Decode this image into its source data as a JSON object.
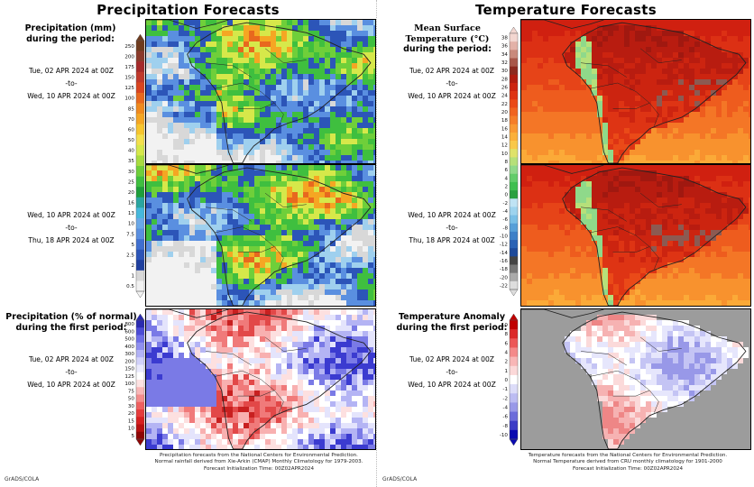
{
  "left": {
    "title": "Precipitation Forecasts",
    "label1_a": "Precipitation (mm)",
    "label1_b": "during the period:",
    "label3_a": "Precipitation (% of normal)",
    "label3_b": "during the first period:",
    "period1": [
      "Tue, 02 APR 2024 at 00Z",
      "-to-",
      "Wed, 10 APR 2024 at 00Z"
    ],
    "period2": [
      "Wed, 10 APR 2024 at 00Z",
      "-to-",
      "Thu, 18 APR 2024 at 00Z"
    ],
    "period3": [
      "Tue, 02 APR 2024 at 00Z",
      "-to-",
      "Wed, 10 APR 2024 at 00Z"
    ],
    "scale_mm": [
      "250",
      "200",
      "175",
      "150",
      "125",
      "100",
      "85",
      "70",
      "60",
      "50",
      "40",
      "35",
      "30",
      "25",
      "20",
      "16",
      "13",
      "10",
      "7.5",
      "5",
      "2.5",
      "2",
      "1",
      "0.5"
    ],
    "scale_pct": [
      "800",
      "600",
      "500",
      "400",
      "300",
      "200",
      "150",
      "125",
      "100",
      "75",
      "50",
      "30",
      "20",
      "15",
      "10",
      "5"
    ],
    "footer": [
      "Precipitation forecasts from the National Centers for Environmental Prediction.",
      "Normal rainfall derived from Xie-Arkin (CMAP) Monthly Climatology for 1979-2003.",
      "Forecast Initialization Time: 00Z02APR2024"
    ],
    "credit": "GrADS/COLA"
  },
  "right": {
    "title": "Temperature Forecasts",
    "label1_a": "Mean Surface Temperature (°C)",
    "label1_b": "during the period:",
    "label3_a": "Temperature Anomaly",
    "label3_b": "during the first period:",
    "period1": [
      "Tue, 02 APR 2024 at 00Z",
      "-to-",
      "Wed, 10 APR 2024 at 00Z"
    ],
    "period2": [
      "Wed, 10 APR 2024 at 00Z",
      "-to-",
      "Thu, 18 APR 2024 at 00Z"
    ],
    "period3": [
      "Tue, 02 APR 2024 at 00Z",
      "-to-",
      "Wed, 10 APR 2024 at 00Z"
    ],
    "scale_temp": [
      "38",
      "36",
      "34",
      "32",
      "30",
      "28",
      "26",
      "24",
      "22",
      "20",
      "18",
      "16",
      "14",
      "12",
      "10",
      "8",
      "6",
      "4",
      "2",
      "0",
      "-2",
      "-4",
      "-6",
      "-8",
      "-10",
      "-12",
      "-14",
      "-16",
      "-18",
      "-20",
      "-22"
    ],
    "scale_anom": [
      "10",
      "8",
      "6",
      "4",
      "2",
      "1",
      "0",
      "-1",
      "-2",
      "-4",
      "-6",
      "-8",
      "-10"
    ],
    "footer": [
      "Temperature forecasts from the National Centers for Environmental Prediction.",
      "Normal Temperature derived from CRU monthly climatology for 1901-2000",
      "Forecast Initialization Time: 00Z02APR2024"
    ],
    "credit": "GrADS/COLA"
  },
  "chart_data": [
    {
      "type": "heatmap",
      "title": "Precipitation (mm) during the period: Tue, 02 APR 2024 at 00Z -to- Wed, 10 APR 2024 at 00Z",
      "colorbar_levels": [
        0.5,
        1,
        2,
        2.5,
        5,
        7.5,
        10,
        13,
        16,
        20,
        25,
        30,
        35,
        40,
        50,
        60,
        70,
        85,
        100,
        125,
        150,
        175,
        200,
        250
      ]
    },
    {
      "type": "heatmap",
      "title": "Precipitation (mm) Wed, 10 APR 2024 at 00Z -to- Thu, 18 APR 2024 at 00Z",
      "colorbar_levels": [
        0.5,
        1,
        2,
        2.5,
        5,
        7.5,
        10,
        13,
        16,
        20,
        25,
        30,
        35,
        40,
        50,
        60,
        70,
        85,
        100,
        125,
        150,
        175,
        200,
        250
      ]
    },
    {
      "type": "heatmap",
      "title": "Precipitation (% of normal) during the first period",
      "colorbar_levels": [
        5,
        10,
        15,
        20,
        30,
        50,
        75,
        100,
        125,
        150,
        200,
        300,
        400,
        500,
        600,
        800
      ]
    },
    {
      "type": "heatmap",
      "title": "Mean Surface Temperature (°C) Tue, 02 APR 2024 at 00Z -to- Wed, 10 APR 2024 at 00Z",
      "colorbar_levels": [
        -22,
        -20,
        -18,
        -16,
        -14,
        -12,
        -10,
        -8,
        -6,
        -4,
        -2,
        0,
        2,
        4,
        6,
        8,
        10,
        12,
        14,
        16,
        18,
        20,
        22,
        24,
        26,
        28,
        30,
        32,
        34,
        36,
        38
      ]
    },
    {
      "type": "heatmap",
      "title": "Mean Surface Temperature (°C) Wed, 10 APR 2024 at 00Z -to- Thu, 18 APR 2024 at 00Z",
      "colorbar_levels": [
        -22,
        -20,
        -18,
        -16,
        -14,
        -12,
        -10,
        -8,
        -6,
        -4,
        -2,
        0,
        2,
        4,
        6,
        8,
        10,
        12,
        14,
        16,
        18,
        20,
        22,
        24,
        26,
        28,
        30,
        32,
        34,
        36,
        38
      ]
    },
    {
      "type": "heatmap",
      "title": "Temperature Anomaly during the first period",
      "colorbar_levels": [
        -10,
        -8,
        -6,
        -4,
        -2,
        -1,
        0,
        1,
        2,
        4,
        6,
        8,
        10
      ]
    }
  ],
  "colors": {
    "precip_scale": [
      "#6e3b1e",
      "#8b3a2a",
      "#a52a2a",
      "#c0392b",
      "#d9441f",
      "#e8681e",
      "#f08a1e",
      "#f5a623",
      "#f7c52e",
      "#f4e04d",
      "#d6e84a",
      "#a9dc3f",
      "#6fcf3a",
      "#3fbf3f",
      "#1e9e3a",
      "#2aa5a0",
      "#46b8dc",
      "#6aa8e8",
      "#5a8fe0",
      "#3f6fd0",
      "#2c55b8",
      "#1f3f9e",
      "#d8d8d8",
      "#f2f2f2"
    ],
    "pct_scale": [
      "#2a2ab0",
      "#4b4bd6",
      "#6d6de8",
      "#8f8ff0",
      "#b2b2f6",
      "#d2d2fa",
      "#eaeafd",
      "#ffffff",
      "#fde2e2",
      "#f9b7b7",
      "#f48c8c",
      "#ee6060",
      "#e63c3c",
      "#d72020",
      "#b81010",
      "#8c0505"
    ],
    "temp_scale": [
      "#f3d6d0",
      "#e3b2a8",
      "#c98a7c",
      "#a8584a",
      "#8c2a1f",
      "#b01d10",
      "#cc2410",
      "#de3414",
      "#ea4a18",
      "#f06420",
      "#f57d28",
      "#f99832",
      "#fbb03a",
      "#f9c84a",
      "#dfe26a",
      "#b6e07a",
      "#8fd98a",
      "#62cc6a",
      "#3fbf50",
      "#2aa040",
      "#bfe3f4",
      "#9dd3ee",
      "#79bfe6",
      "#569fd8",
      "#3d80c8",
      "#2a62b5",
      "#1e4a9a",
      "#444444",
      "#777777",
      "#aaaaaa",
      "#dddddd"
    ],
    "anom_scale": [
      "#c00000",
      "#dc2a2a",
      "#ec5858",
      "#f48a8a",
      "#f8b6b6",
      "#fbd8d8",
      "#ffffff",
      "#dcdcf8",
      "#bcbcf2",
      "#9898e8",
      "#6c6cda",
      "#3b3bc6",
      "#0a0ab0"
    ]
  }
}
